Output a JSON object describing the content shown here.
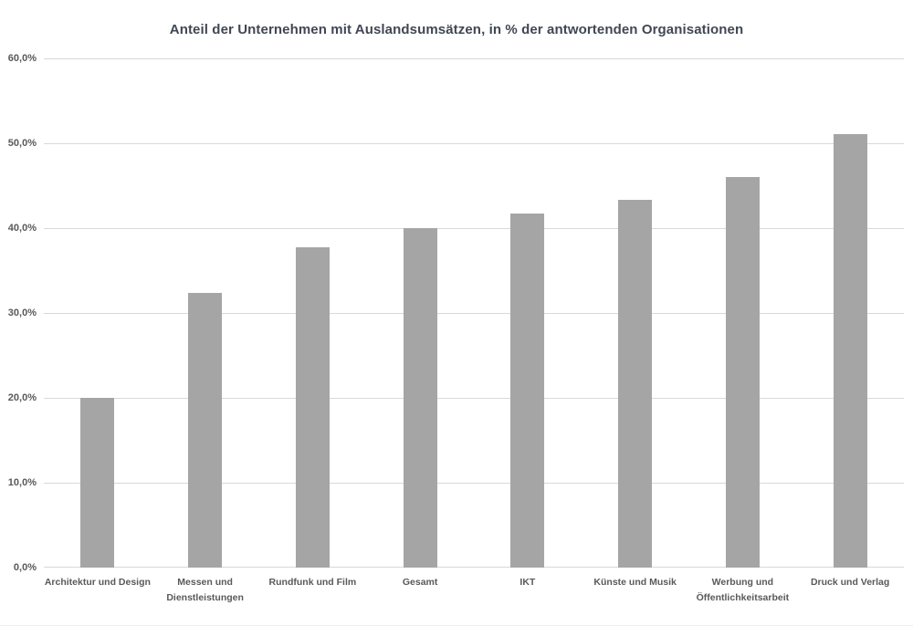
{
  "chart_data": {
    "type": "bar",
    "title": "Anteil der Unternehmen mit Auslandsumsätzen, in % der antwortenden Organisationen",
    "categories": [
      "Architektur und Design",
      "Messen und Dienstleistungen",
      "Rundfunk und Film",
      "Gesamt",
      "IKT",
      "Künste und Musik",
      "Werbung und Öffentlichkeitsarbeit",
      "Druck und Verlag"
    ],
    "values": [
      20.0,
      32.4,
      37.7,
      40.0,
      41.7,
      43.3,
      46.0,
      51.1
    ],
    "xlabel": "",
    "ylabel": "",
    "ylim": [
      0,
      60
    ],
    "y_ticks": [
      0,
      10,
      20,
      30,
      40,
      50,
      60
    ],
    "y_tick_labels": [
      "0,0%",
      "10,0%",
      "20,0%",
      "30,0%",
      "40,0%",
      "50,0%",
      "60,0%"
    ],
    "grid": true,
    "legend": false,
    "bar_color": "#a5a5a5",
    "gridline_color": "#d9d9d9",
    "axis_label_color": "#595959",
    "title_color": "#404754"
  }
}
